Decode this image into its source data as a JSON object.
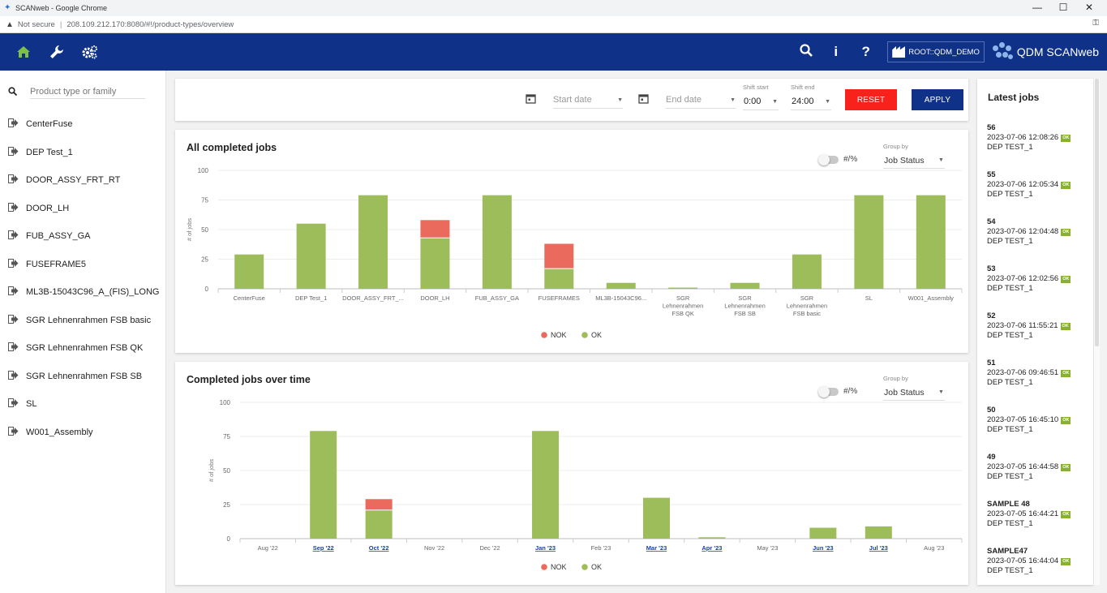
{
  "browser": {
    "window_title": "SCANweb - Google Chrome",
    "security_label": "Not secure",
    "url": "208.109.212.170:8080/#!/product-types/overview",
    "minimize": "—",
    "maximize": "☐",
    "close": "✕"
  },
  "header": {
    "root_label": "ROOT::QDM_DEMO",
    "brand": "QDM SCANweb",
    "icons": [
      "home-icon",
      "wrench-icon",
      "gears-icon",
      "search-icon",
      "info-icon",
      "help-icon"
    ]
  },
  "sidebar": {
    "search_placeholder": "Product type or family",
    "items": [
      {
        "label": "CenterFuse"
      },
      {
        "label": "DEP Test_1"
      },
      {
        "label": "DOOR_ASSY_FRT_RT"
      },
      {
        "label": "DOOR_LH"
      },
      {
        "label": "FUB_ASSY_GA"
      },
      {
        "label": "FUSEFRAME5"
      },
      {
        "label": "ML3B-15043C96_A_(FIS)_LONG"
      },
      {
        "label": "SGR Lehnenrahmen FSB basic"
      },
      {
        "label": "SGR Lehnenrahmen FSB QK"
      },
      {
        "label": "SGR Lehnenrahmen FSB SB"
      },
      {
        "label": "SL"
      },
      {
        "label": "W001_Assembly"
      }
    ]
  },
  "filters": {
    "start_date_placeholder": "Start date",
    "end_date_placeholder": "End date",
    "shift_start_label": "Shift start",
    "shift_start_value": "0:00",
    "shift_end_label": "Shift end",
    "shift_end_value": "24:00",
    "reset_label": "RESET",
    "apply_label": "APPLY"
  },
  "chart1_controls": {
    "toggle_label": "#/%",
    "group_by_label": "Group by",
    "group_by_value": "Job Status"
  },
  "chart2_controls": {
    "toggle_label": "#/%",
    "group_by_label": "Group by",
    "group_by_value": "Job Status"
  },
  "latest_jobs": {
    "title": "Latest jobs",
    "status_badge": "OK",
    "items": [
      {
        "id": "56",
        "time": "2023-07-06 12:08:26",
        "product": "DEP TEST_1"
      },
      {
        "id": "55",
        "time": "2023-07-06 12:05:34",
        "product": "DEP TEST_1"
      },
      {
        "id": "54",
        "time": "2023-07-06 12:04:48",
        "product": "DEP TEST_1"
      },
      {
        "id": "53",
        "time": "2023-07-06 12:02:56",
        "product": "DEP TEST_1"
      },
      {
        "id": "52",
        "time": "2023-07-06 11:55:21",
        "product": "DEP TEST_1"
      },
      {
        "id": "51",
        "time": "2023-07-06 09:46:51",
        "product": "DEP TEST_1"
      },
      {
        "id": "50",
        "time": "2023-07-05 16:45:10",
        "product": "DEP TEST_1"
      },
      {
        "id": "49",
        "time": "2023-07-05 16:44:58",
        "product": "DEP TEST_1"
      },
      {
        "id": "SAMPLE 48",
        "time": "2023-07-05 16:44:21",
        "product": "DEP TEST_1"
      },
      {
        "id": "SAMPLE47",
        "time": "2023-07-05 16:44:04",
        "product": "DEP TEST_1"
      }
    ]
  },
  "colors": {
    "ok": "#9cbd59",
    "nok": "#ea6a5e",
    "header": "#0f3288",
    "reset": "#f8211c",
    "badge": "#88b12e"
  },
  "chart_data": [
    {
      "type": "bar",
      "title": "All completed jobs",
      "ylabel": "# of jobs",
      "ylim": [
        0,
        100
      ],
      "yticks": [
        0,
        25,
        50,
        75,
        100
      ],
      "categories": [
        "CenterFuse",
        "DEP Test_1",
        "DOOR_ASSY_FRT_...",
        "DOOR_LH",
        "FUB_ASSY_GA",
        "FUSEFRAMES",
        "ML3B-15043C96...",
        "SGR Lehnenrahmen FSB QK",
        "SGR Lehnenrahmen FSB SB",
        "SGR Lehnenrahmen FSB basic",
        "SL",
        "W001_Assembly"
      ],
      "stacked": true,
      "series": [
        {
          "name": "OK",
          "values": [
            29,
            55,
            79,
            43,
            79,
            17,
            5,
            1,
            5,
            29,
            79,
            79
          ]
        },
        {
          "name": "NOK",
          "values": [
            0,
            0,
            0,
            15,
            0,
            21,
            0,
            0,
            0,
            0,
            0,
            0
          ]
        }
      ],
      "legend": [
        "NOK",
        "OK"
      ],
      "legend_position": "bottom",
      "grid": true
    },
    {
      "type": "bar",
      "title": "Completed jobs over time",
      "ylabel": "# of jobs",
      "ylim": [
        0,
        100
      ],
      "yticks": [
        0,
        25,
        50,
        75,
        100
      ],
      "categories": [
        "Aug '22",
        "Sep '22",
        "Oct '22",
        "Nov '22",
        "Dec '22",
        "Jan '23",
        "Feb '23",
        "Mar '23",
        "Apr '23",
        "May '23",
        "Jun '23",
        "Jul '23",
        "Aug '23"
      ],
      "highlighted_categories": [
        "Sep '22",
        "Oct '22",
        "Jan '23",
        "Mar '23",
        "Apr '23",
        "Jun '23",
        "Jul '23"
      ],
      "stacked": true,
      "series": [
        {
          "name": "OK",
          "values": [
            0,
            79,
            21,
            0,
            0,
            79,
            0,
            30,
            1,
            0,
            8,
            9,
            0
          ]
        },
        {
          "name": "NOK",
          "values": [
            0,
            0,
            8,
            0,
            0,
            0,
            0,
            0,
            0,
            0,
            0,
            0,
            0
          ]
        }
      ],
      "legend": [
        "NOK",
        "OK"
      ],
      "legend_position": "bottom",
      "grid": true
    }
  ]
}
